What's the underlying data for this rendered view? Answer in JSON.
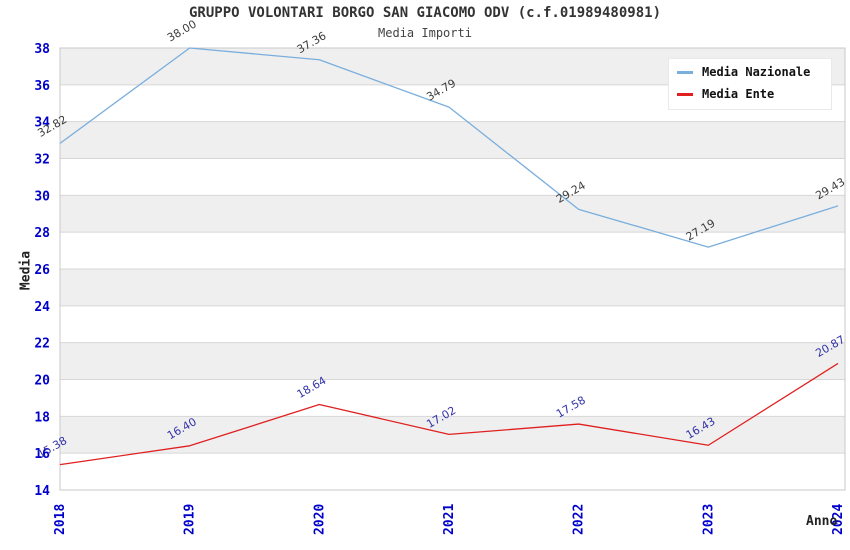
{
  "chart_data": {
    "type": "line",
    "title": "GRUPPO VOLONTARI BORGO SAN GIACOMO ODV (c.f.01989480981)",
    "subtitle": "Media Importi",
    "xlabel": "Anno",
    "ylabel": "Media",
    "categories": [
      "2018",
      "2019",
      "2020",
      "2021",
      "2022",
      "2023",
      "2024"
    ],
    "series": [
      {
        "name": "Media Nazionale",
        "color": "#7aaedd",
        "label_color": "#3c3c3c",
        "values": [
          32.82,
          38.0,
          37.36,
          34.79,
          29.24,
          27.19,
          29.43
        ]
      },
      {
        "name": "Media Ente",
        "color": "#e02020",
        "label_color": "#3232aa",
        "values": [
          15.38,
          16.4,
          18.64,
          17.02,
          17.58,
          16.43,
          20.87
        ]
      }
    ],
    "ylim": [
      14,
      38
    ],
    "yticks": [
      14,
      16,
      18,
      20,
      22,
      24,
      26,
      28,
      30,
      32,
      34,
      36,
      38
    ],
    "grid": true,
    "legend_position": "top-right",
    "tick_label_color": "#0000cc",
    "band_color": "#efefef",
    "gridline_color": "#d7d7d7",
    "border_color": "#c8c8c8"
  }
}
